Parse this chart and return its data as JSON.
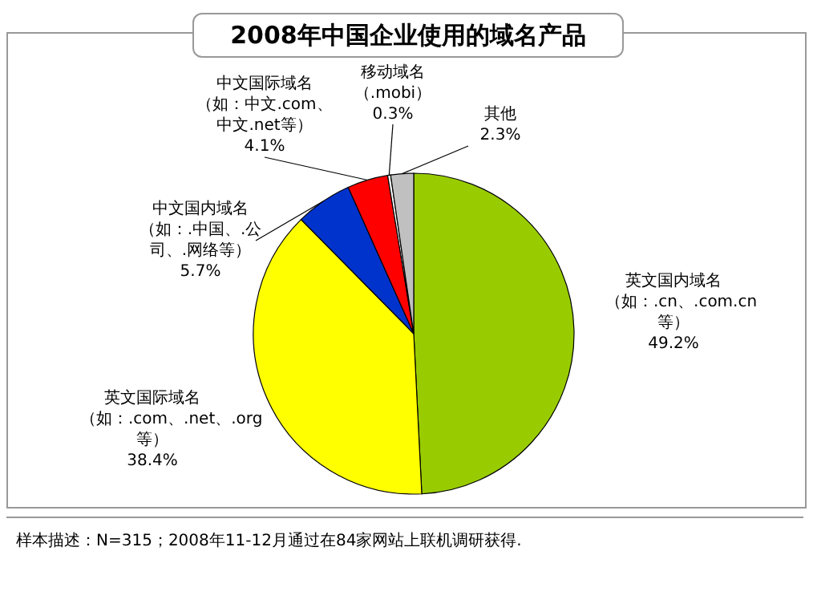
{
  "chart_data": {
    "type": "pie",
    "title": "2008年中国企业使用的域名产品",
    "categories": [
      "英文国内域名（如：.cn、.com.cn等）",
      "英文国际域名（如：.com、.net、.org等）",
      "中文国内域名（如：.中国、.公司、.网络等）",
      "中文国际域名（如：中文.com、中文.net等）",
      "移动域名（.mobi）",
      "其他"
    ],
    "values": [
      49.2,
      38.4,
      5.7,
      4.1,
      0.3,
      2.3
    ],
    "colors": [
      "#99cc00",
      "#ffff00",
      "#0033cc",
      "#ff0000",
      "#ffffff",
      "#c0c0c0"
    ],
    "value_labels": [
      "49.2%",
      "38.4%",
      "5.7%",
      "4.1%",
      "0.3%",
      "2.3%"
    ],
    "annotations": [
      "样本描述：N=315；2008年11-12月通过在84家网站上联机调研获得."
    ]
  }
}
